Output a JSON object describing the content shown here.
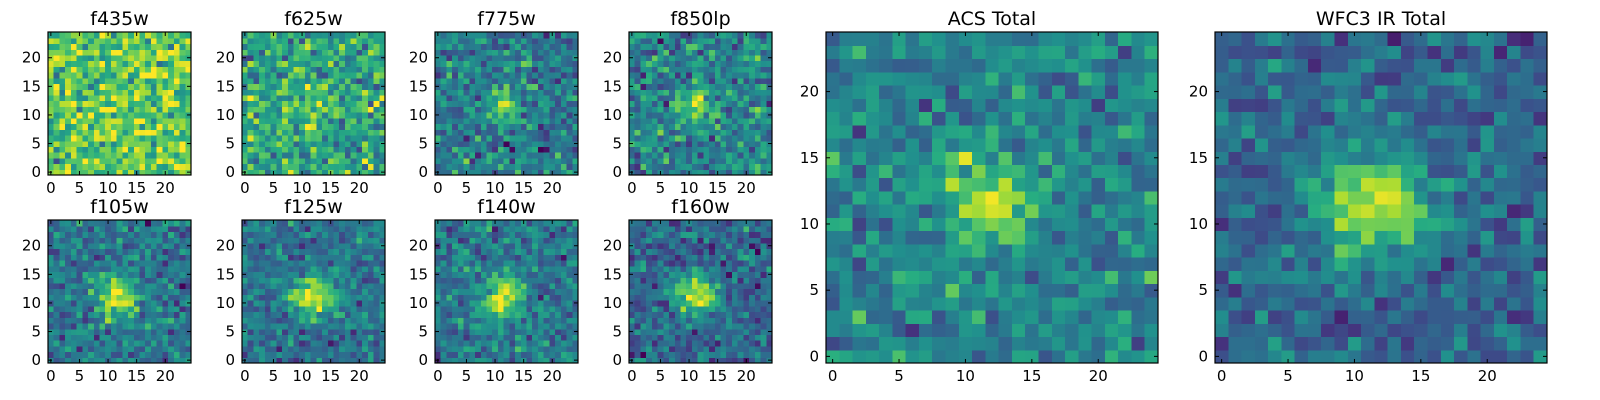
{
  "chart_data": [
    {
      "type": "heatmap",
      "title": "f435w",
      "colormap": "viridis",
      "grid_size": 25,
      "xlim": [
        -0.5,
        24.5
      ],
      "ylim": [
        -0.5,
        24.5
      ],
      "xticks": [
        0,
        5,
        10,
        15,
        20
      ],
      "yticks": [
        0,
        5,
        10,
        15,
        20
      ],
      "source": {
        "peak": 0.05,
        "center": [
          11.5,
          12
        ],
        "width": 2.5
      },
      "background": {
        "mean": 0.75,
        "noise": 0.16
      }
    },
    {
      "type": "heatmap",
      "title": "f625w",
      "colormap": "viridis",
      "grid_size": 25,
      "xlim": [
        -0.5,
        24.5
      ],
      "ylim": [
        -0.5,
        24.5
      ],
      "xticks": [
        0,
        5,
        10,
        15,
        20
      ],
      "yticks": [
        0,
        5,
        10,
        15,
        20
      ],
      "source": {
        "peak": 0.2,
        "center": [
          11.5,
          11.5
        ],
        "width": 2.0
      },
      "background": {
        "mean": 0.6,
        "noise": 0.16
      }
    },
    {
      "type": "heatmap",
      "title": "f775w",
      "colormap": "viridis",
      "grid_size": 25,
      "xlim": [
        -0.5,
        24.5
      ],
      "ylim": [
        -0.5,
        24.5
      ],
      "xticks": [
        0,
        5,
        10,
        15,
        20
      ],
      "yticks": [
        0,
        5,
        10,
        15,
        20
      ],
      "source": {
        "peak": 0.5,
        "center": [
          11.5,
          11.5
        ],
        "width": 1.8
      },
      "background": {
        "mean": 0.42,
        "noise": 0.13
      }
    },
    {
      "type": "heatmap",
      "title": "f850lp",
      "colormap": "viridis",
      "grid_size": 25,
      "xlim": [
        -0.5,
        24.5
      ],
      "ylim": [
        -0.5,
        24.5
      ],
      "xticks": [
        0,
        5,
        10,
        15,
        20
      ],
      "yticks": [
        0,
        5,
        10,
        15,
        20
      ],
      "source": {
        "peak": 0.45,
        "center": [
          11.5,
          11.5
        ],
        "width": 2.0
      },
      "background": {
        "mean": 0.45,
        "noise": 0.14
      }
    },
    {
      "type": "heatmap",
      "title": "f105w",
      "colormap": "viridis",
      "grid_size": 25,
      "xlim": [
        -0.5,
        24.5
      ],
      "ylim": [
        -0.5,
        24.5
      ],
      "xticks": [
        0,
        5,
        10,
        15,
        20
      ],
      "yticks": [
        0,
        5,
        10,
        15,
        20
      ],
      "source": {
        "peak": 0.55,
        "center": [
          11.5,
          11
        ],
        "width": 2.6
      },
      "background": {
        "mean": 0.4,
        "noise": 0.12
      }
    },
    {
      "type": "heatmap",
      "title": "f125w",
      "colormap": "viridis",
      "grid_size": 25,
      "xlim": [
        -0.5,
        24.5
      ],
      "ylim": [
        -0.5,
        24.5
      ],
      "xticks": [
        0,
        5,
        10,
        15,
        20
      ],
      "yticks": [
        0,
        5,
        10,
        15,
        20
      ],
      "source": {
        "peak": 0.6,
        "center": [
          12,
          11.5
        ],
        "width": 2.6
      },
      "background": {
        "mean": 0.38,
        "noise": 0.11
      }
    },
    {
      "type": "heatmap",
      "title": "f140w",
      "colormap": "viridis",
      "grid_size": 25,
      "xlim": [
        -0.5,
        24.5
      ],
      "ylim": [
        -0.5,
        24.5
      ],
      "xticks": [
        0,
        5,
        10,
        15,
        20
      ],
      "yticks": [
        0,
        5,
        10,
        15,
        20
      ],
      "source": {
        "peak": 0.55,
        "center": [
          11.5,
          11
        ],
        "width": 2.6
      },
      "background": {
        "mean": 0.4,
        "noise": 0.12
      }
    },
    {
      "type": "heatmap",
      "title": "f160w",
      "colormap": "viridis",
      "grid_size": 25,
      "xlim": [
        -0.5,
        24.5
      ],
      "ylim": [
        -0.5,
        24.5
      ],
      "xticks": [
        0,
        5,
        10,
        15,
        20
      ],
      "yticks": [
        0,
        5,
        10,
        15,
        20
      ],
      "source": {
        "peak": 0.6,
        "center": [
          11.5,
          11.5
        ],
        "width": 2.6
      },
      "background": {
        "mean": 0.33,
        "noise": 0.12
      }
    },
    {
      "type": "heatmap",
      "title": "ACS Total",
      "colormap": "viridis",
      "grid_size": 25,
      "xlim": [
        -0.5,
        24.5
      ],
      "ylim": [
        -0.5,
        24.5
      ],
      "xticks": [
        0,
        5,
        10,
        15,
        20
      ],
      "yticks": [
        0,
        5,
        10,
        15,
        20
      ],
      "source": {
        "peak": 0.55,
        "center": [
          11.5,
          11.5
        ],
        "width": 2.0
      },
      "background": {
        "mean": 0.45,
        "noise": 0.11
      }
    },
    {
      "type": "heatmap",
      "title": "WFC3 IR Total",
      "colormap": "viridis",
      "grid_size": 25,
      "xlim": [
        -0.5,
        24.5
      ],
      "ylim": [
        -0.5,
        24.5
      ],
      "xticks": [
        0,
        5,
        10,
        15,
        20
      ],
      "yticks": [
        0,
        5,
        10,
        15,
        20
      ],
      "source": {
        "peak": 0.6,
        "center": [
          11.5,
          11.5
        ],
        "width": 2.8
      },
      "background": {
        "mean": 0.34,
        "noise": 0.1
      }
    }
  ]
}
